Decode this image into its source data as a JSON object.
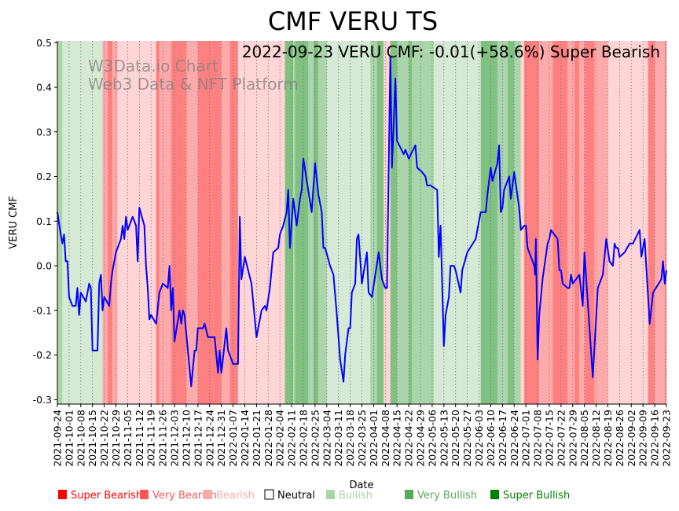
{
  "chart_data": {
    "type": "line",
    "title": "CMF VERU TS",
    "annotation": "2022-09-23 VERU CMF: -0.01(+58.6%) Super Bearish",
    "watermark": [
      "W3Data.io Chart",
      "Web3 Data & NFT Platform"
    ],
    "xlabel": "Date",
    "ylabel": "VERU CMF",
    "ylim": [
      -0.31,
      0.504
    ],
    "x_range": [
      "2021-09-24",
      "2022-09-23"
    ],
    "x_origin": "2021-09-24",
    "x_unit": "days since origin",
    "yticks": [
      "-0.3",
      "-0.2",
      "-0.1",
      "0.0",
      "0.1",
      "0.2",
      "0.3",
      "0.4",
      "0.5"
    ],
    "xticks": [
      "2021-09-24",
      "2021-10-01",
      "2021-10-08",
      "2021-10-15",
      "2021-10-22",
      "2021-10-29",
      "2021-11-05",
      "2021-11-12",
      "2021-11-19",
      "2021-11-26",
      "2021-12-03",
      "2021-12-10",
      "2021-12-17",
      "2021-12-24",
      "2021-12-31",
      "2022-01-07",
      "2022-01-14",
      "2022-01-21",
      "2022-01-28",
      "2022-02-04",
      "2022-02-11",
      "2022-02-18",
      "2022-02-25",
      "2022-03-04",
      "2022-03-11",
      "2022-03-18",
      "2022-03-25",
      "2022-04-01",
      "2022-04-08",
      "2022-04-15",
      "2022-04-22",
      "2022-04-29",
      "2022-05-06",
      "2022-05-13",
      "2022-05-20",
      "2022-05-27",
      "2022-06-03",
      "2022-06-10",
      "2022-06-17",
      "2022-06-24",
      "2022-07-01",
      "2022-07-08",
      "2022-07-15",
      "2022-07-22",
      "2022-07-29",
      "2022-08-05",
      "2022-08-12",
      "2022-08-19",
      "2022-08-26",
      "2022-09-02",
      "2022-09-09",
      "2022-09-16",
      "2022-09-23"
    ],
    "grid": "vertical dotted at x ticks",
    "line_color": "#0000ff",
    "series": [
      {
        "name": "VERU CMF",
        "points": [
          [
            0,
            0.12
          ],
          [
            2,
            0.07
          ],
          [
            3,
            0.05
          ],
          [
            4,
            0.07
          ],
          [
            5,
            0.01
          ],
          [
            6,
            0.01
          ],
          [
            7,
            -0.07
          ],
          [
            9,
            -0.09
          ],
          [
            11,
            -0.09
          ],
          [
            12,
            -0.05
          ],
          [
            13,
            -0.11
          ],
          [
            14,
            -0.06
          ],
          [
            17,
            -0.08
          ],
          [
            19,
            -0.04
          ],
          [
            20,
            -0.05
          ],
          [
            21,
            -0.19
          ],
          [
            24,
            -0.19
          ],
          [
            25,
            -0.04
          ],
          [
            26,
            -0.02
          ],
          [
            27,
            -0.1
          ],
          [
            28,
            -0.07
          ],
          [
            31,
            -0.09
          ],
          [
            32,
            -0.04
          ],
          [
            33,
            -0.01
          ],
          [
            35,
            0.03
          ],
          [
            38,
            0.06
          ],
          [
            39,
            0.09
          ],
          [
            40,
            0.06
          ],
          [
            41,
            0.11
          ],
          [
            42,
            0.08
          ],
          [
            45,
            0.11
          ],
          [
            47,
            0.09
          ],
          [
            48,
            0.01
          ],
          [
            49,
            0.13
          ],
          [
            52,
            0.09
          ],
          [
            53,
            0.0
          ],
          [
            54,
            -0.05
          ],
          [
            55,
            -0.12
          ],
          [
            56,
            -0.11
          ],
          [
            59,
            -0.13
          ],
          [
            61,
            -0.06
          ],
          [
            63,
            -0.04
          ],
          [
            66,
            -0.05
          ],
          [
            67,
            0.0
          ],
          [
            68,
            -0.1
          ],
          [
            69,
            -0.05
          ],
          [
            70,
            -0.17
          ],
          [
            73,
            -0.1
          ],
          [
            74,
            -0.13
          ],
          [
            75,
            -0.1
          ],
          [
            76,
            -0.11
          ],
          [
            80,
            -0.27
          ],
          [
            82,
            -0.19
          ],
          [
            83,
            -0.19
          ],
          [
            84,
            -0.14
          ],
          [
            87,
            -0.14
          ],
          [
            88,
            -0.13
          ],
          [
            90,
            -0.16
          ],
          [
            94,
            -0.16
          ],
          [
            96,
            -0.24
          ],
          [
            97,
            -0.19
          ],
          [
            98,
            -0.24
          ],
          [
            101,
            -0.14
          ],
          [
            102,
            -0.19
          ],
          [
            105,
            -0.22
          ],
          [
            108,
            -0.22
          ],
          [
            109,
            0.11
          ],
          [
            110,
            -0.03
          ],
          [
            112,
            0.02
          ],
          [
            116,
            -0.04
          ],
          [
            119,
            -0.16
          ],
          [
            122,
            -0.1
          ],
          [
            124,
            -0.09
          ],
          [
            125,
            -0.1
          ],
          [
            127,
            -0.05
          ],
          [
            129,
            0.03
          ],
          [
            132,
            0.04
          ],
          [
            133,
            0.07
          ],
          [
            135,
            0.09
          ],
          [
            137,
            0.12
          ],
          [
            138,
            0.17
          ],
          [
            139,
            0.04
          ],
          [
            141,
            0.15
          ],
          [
            143,
            0.09
          ],
          [
            145,
            0.15
          ],
          [
            146,
            0.17
          ],
          [
            147,
            0.24
          ],
          [
            152,
            0.12
          ],
          [
            154,
            0.23
          ],
          [
            156,
            0.16
          ],
          [
            158,
            0.12
          ],
          [
            159,
            0.04
          ],
          [
            160,
            0.04
          ],
          [
            163,
            0.0
          ],
          [
            165,
            -0.02
          ],
          [
            167,
            -0.11
          ],
          [
            169,
            -0.21
          ],
          [
            171,
            -0.26
          ],
          [
            172,
            -0.2
          ],
          [
            174,
            -0.14
          ],
          [
            175,
            -0.14
          ],
          [
            176,
            -0.06
          ],
          [
            178,
            -0.04
          ],
          [
            179,
            0.06
          ],
          [
            180,
            0.07
          ],
          [
            182,
            -0.04
          ],
          [
            185,
            0.03
          ],
          [
            186,
            -0.06
          ],
          [
            188,
            -0.07
          ],
          [
            192,
            0.03
          ],
          [
            194,
            -0.03
          ],
          [
            196,
            -0.05
          ],
          [
            197,
            -0.05
          ],
          [
            199,
            0.47
          ],
          [
            200,
            0.22
          ],
          [
            202,
            0.42
          ],
          [
            203,
            0.28
          ],
          [
            207,
            0.25
          ],
          [
            208,
            0.26
          ],
          [
            210,
            0.24
          ],
          [
            214,
            0.27
          ],
          [
            215,
            0.22
          ],
          [
            218,
            0.21
          ],
          [
            220,
            0.2
          ],
          [
            221,
            0.18
          ],
          [
            223,
            0.18
          ],
          [
            227,
            0.17
          ],
          [
            228,
            0.02
          ],
          [
            229,
            0.09
          ],
          [
            231,
            -0.18
          ],
          [
            232,
            -0.11
          ],
          [
            234,
            -0.07
          ],
          [
            235,
            0.0
          ],
          [
            237,
            0.0
          ],
          [
            238,
            -0.01
          ],
          [
            241,
            -0.06
          ],
          [
            242,
            -0.01
          ],
          [
            245,
            0.03
          ],
          [
            250,
            0.06
          ],
          [
            252,
            0.1
          ],
          [
            253,
            0.12
          ],
          [
            256,
            0.12
          ],
          [
            257,
            0.16
          ],
          [
            259,
            0.22
          ],
          [
            260,
            0.19
          ],
          [
            263,
            0.23
          ],
          [
            264,
            0.27
          ],
          [
            265,
            0.12
          ],
          [
            266,
            0.13
          ],
          [
            267,
            0.17
          ],
          [
            270,
            0.2
          ],
          [
            271,
            0.15
          ],
          [
            273,
            0.21
          ],
          [
            276,
            0.13
          ],
          [
            277,
            0.08
          ],
          [
            279,
            0.09
          ],
          [
            280,
            0.09
          ],
          [
            281,
            0.04
          ],
          [
            285,
            0.0
          ],
          [
            285.5,
            -0.02
          ],
          [
            286,
            0.06
          ],
          [
            287,
            -0.21
          ],
          [
            288,
            -0.11
          ],
          [
            290,
            -0.03
          ],
          [
            293,
            0.05
          ],
          [
            294,
            0.06
          ],
          [
            295,
            0.08
          ],
          [
            299,
            0.06
          ],
          [
            300,
            -0.01
          ],
          [
            301,
            -0.01
          ],
          [
            302,
            -0.04
          ],
          [
            305,
            -0.05
          ],
          [
            306,
            -0.05
          ],
          [
            307,
            -0.02
          ],
          [
            308,
            -0.04
          ],
          [
            310,
            -0.03
          ],
          [
            312,
            -0.02
          ],
          [
            314,
            -0.09
          ],
          [
            315,
            0.03
          ],
          [
            320,
            -0.25
          ],
          [
            323,
            -0.05
          ],
          [
            326,
            -0.02
          ],
          [
            328,
            0.06
          ],
          [
            330,
            0.01
          ],
          [
            332,
            0.0
          ],
          [
            333,
            0.05
          ],
          [
            334,
            0.04
          ],
          [
            335,
            0.04
          ],
          [
            336,
            0.02
          ],
          [
            339,
            0.03
          ],
          [
            342,
            0.05
          ],
          [
            344,
            0.05
          ],
          [
            348,
            0.08
          ],
          [
            349,
            0.02
          ],
          [
            351,
            0.06
          ],
          [
            354,
            -0.13
          ],
          [
            356,
            -0.06
          ],
          [
            361,
            -0.03
          ],
          [
            362,
            0.01
          ],
          [
            363,
            -0.04
          ],
          [
            364,
            -0.01
          ]
        ]
      }
    ],
    "regime_colors": {
      "super_bearish": "#ff8080",
      "very_bearish": "#ffaaaa",
      "bearish": "#ffd5d5",
      "bullish": "#d5ead5",
      "very_bullish": "#aad5aa",
      "super_bullish": "#80c080"
    },
    "bands": [
      [
        "2021-09-24",
        "2021-09-27",
        "very_bullish"
      ],
      [
        "2021-09-27",
        "2021-10-21",
        "bullish"
      ],
      [
        "2021-10-21",
        "2021-10-24",
        "very_bearish"
      ],
      [
        "2021-10-24",
        "2021-10-27",
        "super_bearish"
      ],
      [
        "2021-10-27",
        "2021-10-30",
        "very_bearish"
      ],
      [
        "2021-10-30",
        "2021-11-22",
        "bearish"
      ],
      [
        "2021-11-22",
        "2021-11-24",
        "super_bearish"
      ],
      [
        "2021-11-24",
        "2021-12-01",
        "very_bearish"
      ],
      [
        "2021-12-01",
        "2021-12-10",
        "super_bearish"
      ],
      [
        "2021-12-10",
        "2021-12-17",
        "very_bearish"
      ],
      [
        "2021-12-17",
        "2021-12-31",
        "super_bearish"
      ],
      [
        "2021-12-31",
        "2022-01-05",
        "very_bearish"
      ],
      [
        "2022-01-05",
        "2022-01-10",
        "super_bearish"
      ],
      [
        "2022-01-10",
        "2022-02-07",
        "bearish"
      ],
      [
        "2022-02-07",
        "2022-02-12",
        "super_bullish"
      ],
      [
        "2022-02-12",
        "2022-02-13",
        "very_bullish"
      ],
      [
        "2022-02-13",
        "2022-02-21",
        "super_bullish"
      ],
      [
        "2022-02-21",
        "2022-02-24",
        "very_bullish"
      ],
      [
        "2022-02-24",
        "2022-02-27",
        "super_bullish"
      ],
      [
        "2022-02-27",
        "2022-03-04",
        "very_bullish"
      ],
      [
        "2022-03-04",
        "2022-03-30",
        "bullish"
      ],
      [
        "2022-03-30",
        "2022-04-03",
        "very_bullish"
      ],
      [
        "2022-04-03",
        "2022-04-07",
        "super_bullish"
      ],
      [
        "2022-04-07",
        "2022-04-11",
        "bearish"
      ],
      [
        "2022-04-11",
        "2022-04-15",
        "super_bullish"
      ],
      [
        "2022-04-15",
        "2022-04-22",
        "very_bullish"
      ],
      [
        "2022-04-22",
        "2022-04-24",
        "super_bullish"
      ],
      [
        "2022-04-24",
        "2022-05-07",
        "very_bullish"
      ],
      [
        "2022-05-07",
        "2022-06-04",
        "bullish"
      ],
      [
        "2022-06-04",
        "2022-06-14",
        "super_bullish"
      ],
      [
        "2022-06-14",
        "2022-06-20",
        "very_bullish"
      ],
      [
        "2022-06-20",
        "2022-06-24",
        "super_bullish"
      ],
      [
        "2022-06-24",
        "2022-06-28",
        "very_bullish"
      ],
      [
        "2022-06-28",
        "2022-06-30",
        "bearish"
      ],
      [
        "2022-06-30",
        "2022-07-09",
        "super_bearish"
      ],
      [
        "2022-07-09",
        "2022-07-17",
        "very_bearish"
      ],
      [
        "2022-07-17",
        "2022-07-26",
        "super_bearish"
      ],
      [
        "2022-07-26",
        "2022-07-30",
        "very_bearish"
      ],
      [
        "2022-07-30",
        "2022-08-02",
        "super_bearish"
      ],
      [
        "2022-08-02",
        "2022-08-05",
        "very_bearish"
      ],
      [
        "2022-08-05",
        "2022-08-11",
        "super_bearish"
      ],
      [
        "2022-08-11",
        "2022-08-19",
        "very_bearish"
      ],
      [
        "2022-08-19",
        "2022-09-02",
        "bearish"
      ],
      [
        "2022-09-02",
        "2022-09-12",
        "bearish"
      ],
      [
        "2022-09-12",
        "2022-09-16",
        "super_bearish"
      ],
      [
        "2022-09-16",
        "2022-09-22",
        "very_bearish"
      ],
      [
        "2022-09-22",
        "2022-09-23",
        "super_bearish"
      ]
    ],
    "legend": {
      "placement": "bottom",
      "items": [
        {
          "label": "Super Bearish",
          "color": "#ff0000",
          "text_color": "#ff0000"
        },
        {
          "label": "Very Bearish",
          "color": "#ff5555",
          "text_color": "#ff5555"
        },
        {
          "label": "Bearish",
          "color": "#ffaaaa",
          "text_color": "#ffaaaa"
        },
        {
          "label": "Neutral",
          "color": "#ffffff",
          "text_color": "#000000"
        },
        {
          "label": "Bullish",
          "color": "#aad5aa",
          "text_color": "#aad5aa"
        },
        {
          "label": "Very Bullish",
          "color": "#55aa55",
          "text_color": "#55aa55"
        },
        {
          "label": "Super Bullish",
          "color": "#008000",
          "text_color": "#008000"
        }
      ]
    }
  }
}
